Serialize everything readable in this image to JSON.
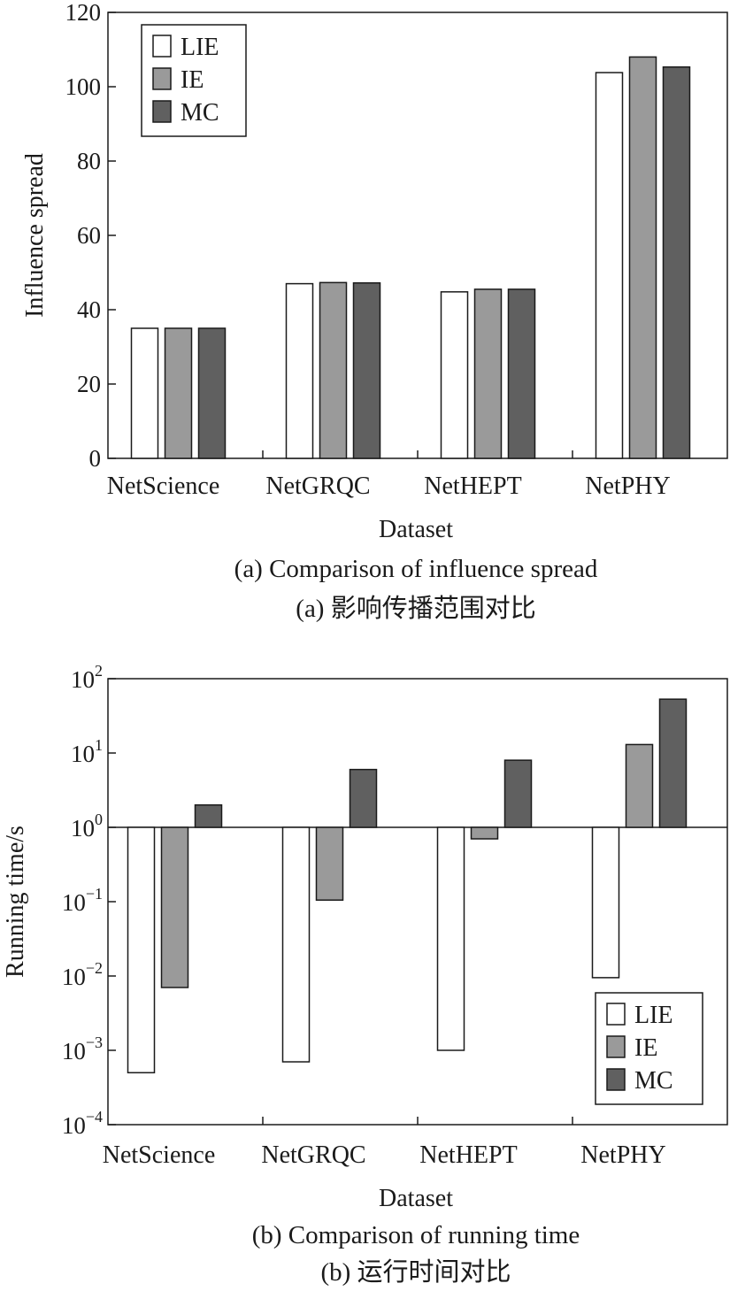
{
  "colors": {
    "LIE": "#ffffff",
    "IE": "#9a9a9a",
    "MC": "#606060",
    "stroke": "#1a1a1a"
  },
  "chart_data": [
    {
      "type": "bar",
      "categories": [
        "NetScience",
        "NetGRQC",
        "NetHEPT",
        "NetPHY"
      ],
      "series": [
        {
          "name": "LIE",
          "values": [
            35,
            47,
            44.8,
            103.8
          ]
        },
        {
          "name": "IE",
          "values": [
            35,
            47.3,
            45.5,
            108
          ]
        },
        {
          "name": "MC",
          "values": [
            35,
            47.2,
            45.5,
            105.3
          ]
        }
      ],
      "xlabel": "Dataset",
      "ylabel": "Influence spread",
      "ylim": [
        0,
        120
      ],
      "yticks": [
        "0",
        "20",
        "40",
        "60",
        "80",
        "100",
        "120"
      ],
      "legend": "top-left",
      "caption_en": "(a) Comparison of influence spread",
      "caption_zh": "(a) 影响传播范围对比"
    },
    {
      "type": "bar",
      "yscale": "log",
      "categories": [
        "NetScience",
        "NetGRQC",
        "NetHEPT",
        "NetPHY"
      ],
      "series": [
        {
          "name": "LIE",
          "values": [
            0.0005,
            0.0007,
            0.001,
            0.0095
          ]
        },
        {
          "name": "IE",
          "values": [
            0.007,
            0.105,
            0.7,
            13
          ]
        },
        {
          "name": "MC",
          "values": [
            2,
            6,
            8,
            53
          ]
        }
      ],
      "xlabel": "Dataset",
      "ylabel": "Running time/s",
      "ylim": [
        0.0001,
        100
      ],
      "yticks": [
        {
          "base": "10",
          "exp": "−4"
        },
        {
          "base": "10",
          "exp": "−3"
        },
        {
          "base": "10",
          "exp": "−2"
        },
        {
          "base": "10",
          "exp": "−1"
        },
        {
          "base": "10",
          "exp": "0"
        },
        {
          "base": "10",
          "exp": "1"
        },
        {
          "base": "10",
          "exp": "2"
        }
      ],
      "legend": "bottom-right",
      "caption_en": "(b) Comparison of running time",
      "caption_zh": "(b) 运行时间对比"
    }
  ]
}
